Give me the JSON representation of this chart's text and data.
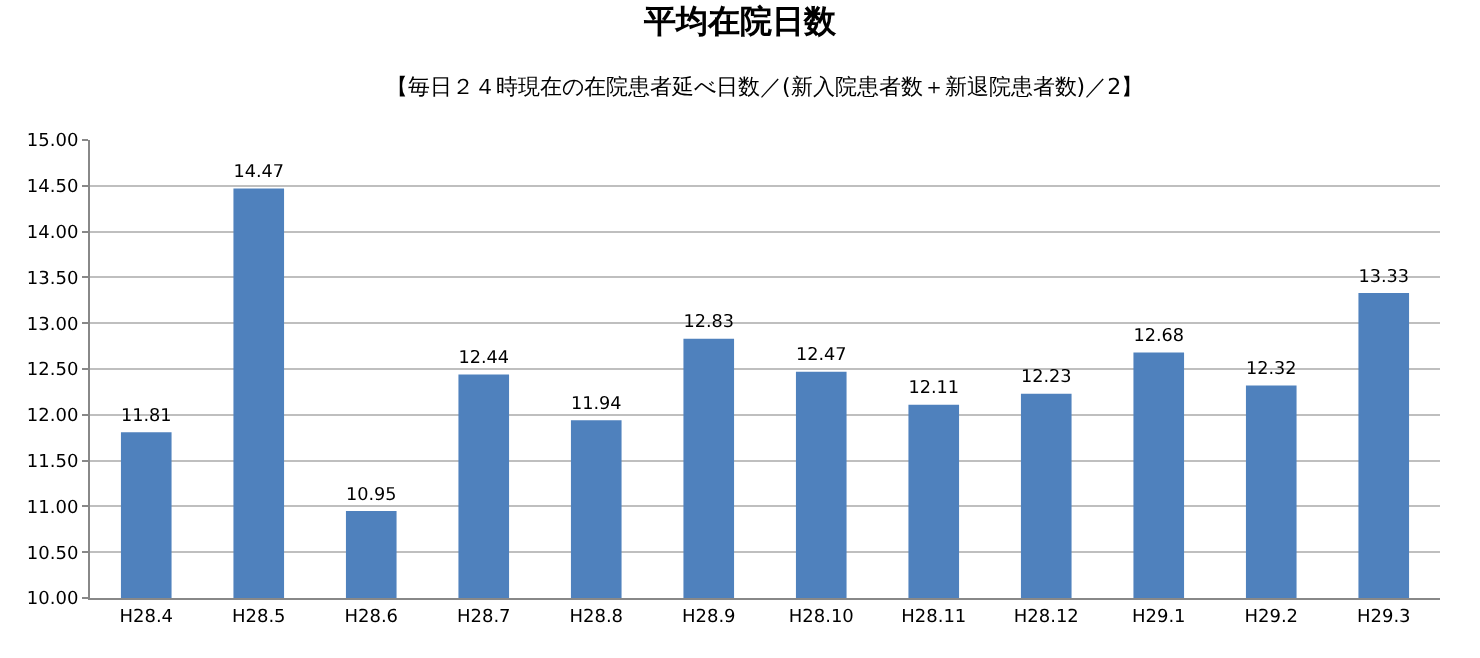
{
  "chart_data": {
    "type": "bar",
    "title": "平均在院日数",
    "subtitle": "【毎日２４時現在の在院患者延べ日数／(新入院患者数＋新退院患者数)／2】",
    "categories": [
      "H28.4",
      "H28.5",
      "H28.6",
      "H28.7",
      "H28.8",
      "H28.9",
      "H28.10",
      "H28.11",
      "H28.12",
      "H29.1",
      "H29.2",
      "H29.3"
    ],
    "values": [
      11.81,
      14.47,
      10.95,
      12.44,
      11.94,
      12.83,
      12.47,
      12.11,
      12.23,
      12.68,
      12.32,
      13.33
    ],
    "color": "#4f81bd",
    "data_labels": true,
    "grid": "y",
    "legend": false,
    "ylim": [
      10,
      15
    ],
    "yticks": [
      {
        "value": 10,
        "label": "10.00"
      },
      {
        "value": 10.5,
        "label": "10.50"
      },
      {
        "value": 11,
        "label": "11.00"
      },
      {
        "value": 11.5,
        "label": "11.50"
      },
      {
        "value": 12,
        "label": "12.00"
      },
      {
        "value": 12.5,
        "label": "12.50"
      },
      {
        "value": 13,
        "label": "13.00"
      },
      {
        "value": 13.5,
        "label": "13.50"
      },
      {
        "value": 14,
        "label": "14.00"
      },
      {
        "value": 14.5,
        "label": "14.50"
      },
      {
        "value": 15,
        "label": "15.00"
      }
    ]
  }
}
